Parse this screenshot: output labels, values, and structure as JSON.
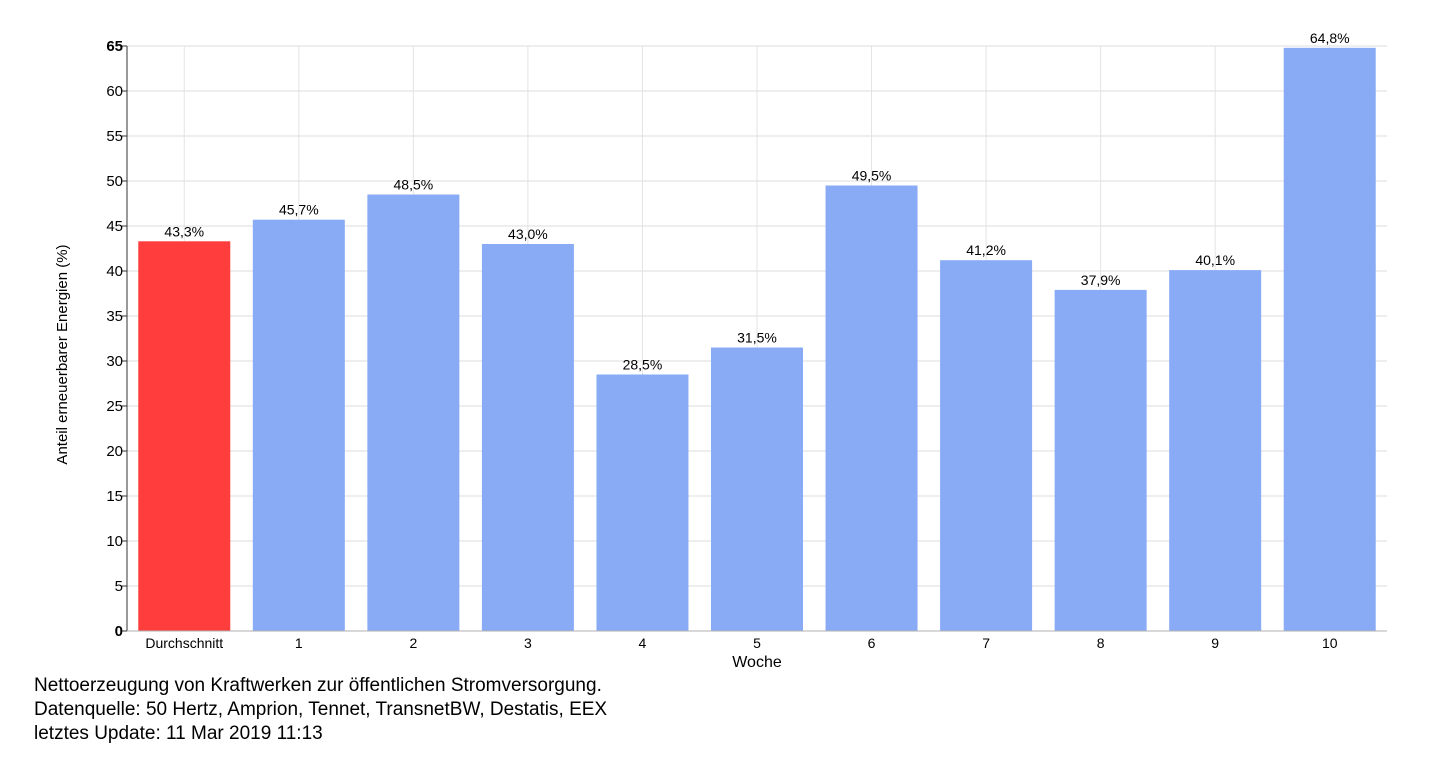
{
  "chart_data": {
    "type": "bar",
    "categories": [
      "Durchschnitt",
      "1",
      "2",
      "3",
      "4",
      "5",
      "6",
      "7",
      "8",
      "9",
      "10"
    ],
    "values": [
      43.3,
      45.7,
      48.5,
      43.0,
      28.5,
      31.5,
      49.5,
      41.2,
      37.9,
      40.1,
      64.8
    ],
    "value_labels": [
      "43,3%",
      "45,7%",
      "48,5%",
      "43,0%",
      "28,5%",
      "31,5%",
      "49,5%",
      "41,2%",
      "37,9%",
      "40,1%",
      "64,8%"
    ],
    "bar_colors": [
      "#ff3d3d",
      "#89abf5",
      "#89abf5",
      "#89abf5",
      "#89abf5",
      "#89abf5",
      "#89abf5",
      "#89abf5",
      "#89abf5",
      "#89abf5",
      "#89abf5"
    ],
    "xlabel": "Woche",
    "ylabel": "Anteil erneuerbarer Energien (%)",
    "ylim": [
      0,
      65
    ],
    "yticks": [
      "0",
      "5",
      "10",
      "15",
      "20",
      "25",
      "30",
      "35",
      "40",
      "45",
      "50",
      "55",
      "60",
      "65"
    ],
    "grid": true,
    "legend": "none"
  },
  "footer": {
    "line1": "Nettoerzeugung von Kraftwerken zur öffentlichen Stromversorgung.",
    "line2": "Datenquelle: 50 Hertz, Amprion, Tennet, TransnetBW, Destatis, EEX",
    "line3": "letztes Update: 11 Mar 2019 11:13"
  }
}
